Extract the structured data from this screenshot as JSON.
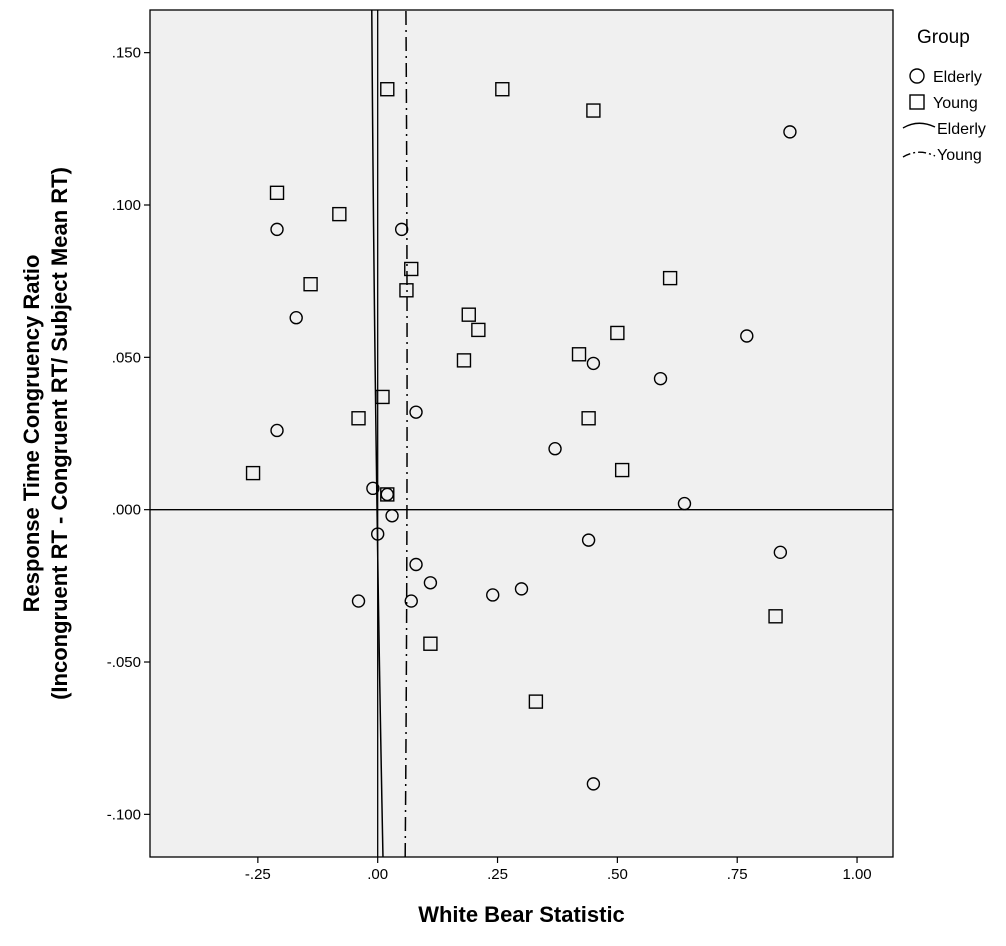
{
  "chart_data": {
    "type": "scatter",
    "xlabel": "White Bear Statistic",
    "ylabel": [
      "Response Time Congruency Ratio",
      "(Incongruent RT - Congruent RT/ Subject Mean RT)"
    ],
    "xlim": [
      -0.475,
      1.075
    ],
    "ylim": [
      -0.114,
      0.164
    ],
    "x_ticks": [
      -0.25,
      0.0,
      0.25,
      0.5,
      0.75,
      1.0
    ],
    "x_tick_labels": [
      "-.25",
      ".00",
      ".25",
      ".50",
      ".75",
      "1.00"
    ],
    "y_ticks": [
      0.15,
      0.1,
      0.05,
      0.0,
      -0.05,
      -0.1
    ],
    "y_tick_labels": [
      ".150",
      ".100",
      ".050",
      ".000",
      "-.050",
      "-.100"
    ],
    "reference_lines": {
      "x": 0.0,
      "y": 0.0
    },
    "grid": false,
    "plot_background": "#f0f0f0",
    "legend": {
      "title": "Group",
      "placement": "right",
      "entries": [
        {
          "label": "Elderly",
          "symbol": "circle"
        },
        {
          "label": "Young",
          "symbol": "square"
        },
        {
          "label": "Elderly",
          "symbol": "solid-line"
        },
        {
          "label": "Young",
          "symbol": "dash-dot-line"
        }
      ]
    },
    "series": [
      {
        "name": "Elderly",
        "marker": "circle",
        "points": [
          [
            -0.21,
            0.092
          ],
          [
            -0.21,
            0.026
          ],
          [
            -0.17,
            0.063
          ],
          [
            0.05,
            0.092
          ],
          [
            0.08,
            0.032
          ],
          [
            -0.01,
            0.007
          ],
          [
            0.02,
            0.005
          ],
          [
            0.03,
            -0.002
          ],
          [
            0.0,
            -0.008
          ],
          [
            0.08,
            -0.018
          ],
          [
            0.11,
            -0.024
          ],
          [
            -0.04,
            -0.03
          ],
          [
            0.07,
            -0.03
          ],
          [
            0.24,
            -0.028
          ],
          [
            0.3,
            -0.026
          ],
          [
            0.37,
            0.02
          ],
          [
            0.44,
            -0.01
          ],
          [
            0.45,
            0.048
          ],
          [
            0.59,
            0.043
          ],
          [
            0.64,
            0.002
          ],
          [
            0.77,
            0.057
          ],
          [
            0.84,
            -0.014
          ],
          [
            0.86,
            0.124
          ],
          [
            0.45,
            -0.09
          ]
        ]
      },
      {
        "name": "Young",
        "marker": "square",
        "points": [
          [
            -0.26,
            0.012
          ],
          [
            -0.21,
            0.104
          ],
          [
            -0.14,
            0.074
          ],
          [
            -0.08,
            0.097
          ],
          [
            -0.04,
            0.03
          ],
          [
            0.01,
            0.037
          ],
          [
            0.02,
            0.005
          ],
          [
            0.02,
            0.138
          ],
          [
            0.06,
            0.072
          ],
          [
            0.07,
            0.079
          ],
          [
            0.11,
            -0.044
          ],
          [
            0.18,
            0.049
          ],
          [
            0.19,
            0.064
          ],
          [
            0.21,
            0.059
          ],
          [
            0.26,
            0.138
          ],
          [
            0.33,
            -0.063
          ],
          [
            0.42,
            0.051
          ],
          [
            0.44,
            0.03
          ],
          [
            0.45,
            0.131
          ],
          [
            0.5,
            0.058
          ],
          [
            0.51,
            0.013
          ],
          [
            0.61,
            0.076
          ],
          [
            0.83,
            -0.035
          ]
        ]
      }
    ],
    "fit_lines": [
      {
        "name": "Elderly",
        "style": "solid",
        "model": "quadratic",
        "coefficients": [
          -0.00138,
          -0.0915,
          0.1508
        ]
      },
      {
        "name": "Young",
        "style": "dash-dot",
        "model": "quadratic",
        "coefficients": [
          0.061,
          0.0137,
          -0.1614
        ]
      }
    ]
  }
}
